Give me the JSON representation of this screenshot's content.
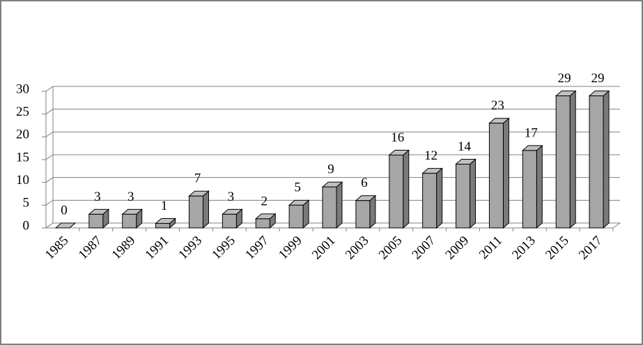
{
  "chart_data": {
    "type": "bar3d",
    "categories": [
      "1985",
      "1987",
      "1989",
      "1991",
      "1993",
      "1995",
      "1997",
      "1999",
      "2001",
      "2003",
      "2005",
      "2007",
      "2009",
      "2011",
      "2013",
      "2015",
      "2017"
    ],
    "values": [
      0,
      3,
      3,
      1,
      7,
      3,
      2,
      5,
      9,
      6,
      16,
      12,
      14,
      23,
      17,
      29,
      29
    ],
    "color": "#a6a6a6",
    "ylim": [
      0,
      30
    ],
    "yticks": [
      0,
      5,
      10,
      15,
      20,
      25,
      30
    ],
    "grid": true
  }
}
